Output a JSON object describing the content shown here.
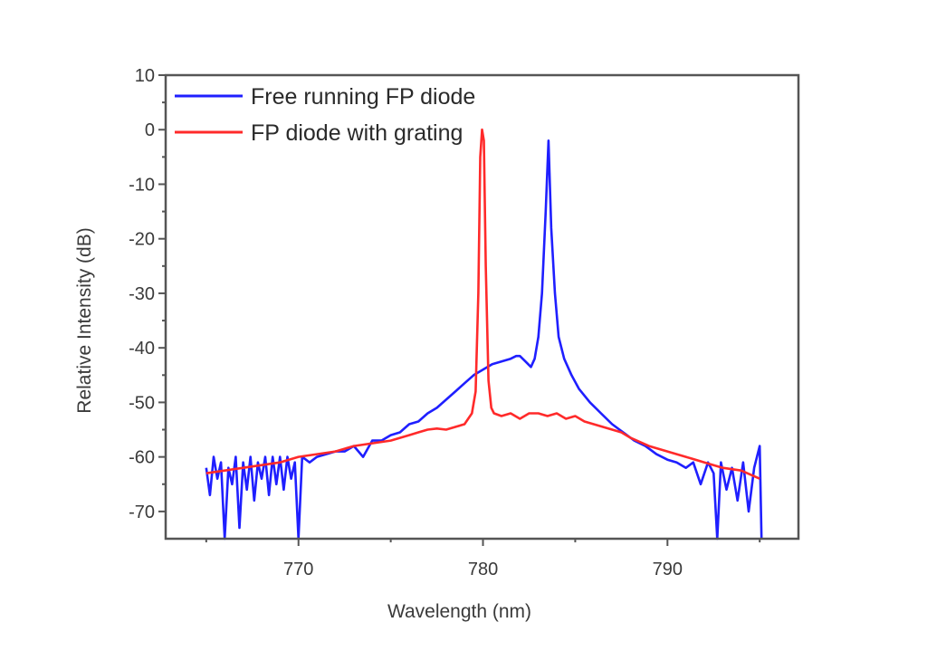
{
  "chart_data": {
    "type": "line",
    "title": "",
    "xlabel": "Wavelength (nm)",
    "ylabel": "Relative Intensity (dB)",
    "xlim": [
      762.8,
      797.1
    ],
    "ylim": [
      -75,
      10
    ],
    "x_ticks": [
      770,
      780,
      790
    ],
    "x_minor_ticks": [
      765,
      775,
      785,
      795
    ],
    "y_ticks": [
      10,
      0,
      -10,
      -20,
      -30,
      -40,
      -50,
      -60,
      -70
    ],
    "y_minor_ticks": [
      5,
      -5,
      -15,
      -25,
      -35,
      -45,
      -55,
      -65
    ],
    "grid": false,
    "legend_position": "upper-left",
    "series": [
      {
        "name": "Free running FP diode",
        "color": "#1f1fff",
        "x": [
          765.0,
          765.2,
          765.4,
          765.6,
          765.8,
          766.0,
          766.2,
          766.4,
          766.6,
          766.8,
          767.0,
          767.2,
          767.4,
          767.6,
          767.8,
          768.0,
          768.2,
          768.4,
          768.6,
          768.8,
          769.0,
          769.2,
          769.4,
          769.6,
          769.8,
          770.0,
          770.2,
          770.6,
          771.0,
          771.5,
          772.0,
          772.5,
          773.0,
          773.5,
          774.0,
          774.5,
          775.0,
          775.5,
          776.0,
          776.5,
          777.0,
          777.5,
          778.0,
          778.5,
          779.0,
          779.5,
          780.0,
          780.5,
          781.0,
          781.5,
          781.8,
          782.0,
          782.3,
          782.6,
          782.8,
          783.0,
          783.2,
          783.4,
          783.55,
          783.7,
          783.9,
          784.1,
          784.4,
          784.8,
          785.2,
          785.8,
          786.4,
          787.0,
          787.6,
          788.2,
          788.8,
          789.4,
          790.0,
          790.5,
          791.0,
          791.4,
          791.8,
          792.2,
          792.5,
          792.7,
          792.9,
          793.2,
          793.5,
          793.8,
          794.1,
          794.4,
          794.7,
          795.0,
          795.1
        ],
        "y": [
          -62,
          -67,
          -60,
          -64,
          -61,
          -75,
          -62,
          -65,
          -60,
          -73,
          -61,
          -66,
          -60,
          -68,
          -61,
          -64,
          -60,
          -67,
          -60,
          -65,
          -60,
          -66,
          -60,
          -64,
          -61,
          -75,
          -60,
          -61,
          -60,
          -59.5,
          -59,
          -59,
          -58,
          -60,
          -57,
          -57,
          -56,
          -55.5,
          -54,
          -53.5,
          -52,
          -51,
          -49.5,
          -48,
          -46.5,
          -45,
          -44,
          -43,
          -42.5,
          -42,
          -41.5,
          -41.5,
          -42.5,
          -43.5,
          -42,
          -38,
          -30,
          -15,
          -2,
          -18,
          -30,
          -38,
          -42,
          -45,
          -47.5,
          -50,
          -52,
          -54,
          -55.5,
          -57,
          -58,
          -59.5,
          -60.5,
          -61,
          -62,
          -61,
          -65,
          -61,
          -63,
          -75,
          -61,
          -66,
          -62,
          -68,
          -61,
          -70,
          -62,
          -58,
          -75
        ]
      },
      {
        "name": "FP diode with grating",
        "color": "#ff2a2a",
        "x": [
          765.0,
          766.0,
          767.0,
          768.0,
          769.0,
          770.0,
          771.0,
          772.0,
          773.0,
          774.0,
          775.0,
          775.5,
          776.0,
          776.5,
          777.0,
          777.5,
          778.0,
          778.5,
          779.0,
          779.4,
          779.6,
          779.75,
          779.85,
          779.95,
          780.05,
          780.15,
          780.3,
          780.45,
          780.6,
          781.0,
          781.5,
          782.0,
          782.5,
          783.0,
          783.5,
          784.0,
          784.5,
          785.0,
          785.5,
          786.0,
          786.5,
          787.0,
          787.5,
          788.0,
          789.0,
          790.0,
          791.0,
          792.0,
          793.0,
          794.0,
          795.0
        ],
        "y": [
          -63,
          -62.5,
          -62,
          -61.5,
          -61,
          -60,
          -59.5,
          -59,
          -58,
          -57.5,
          -57,
          -56.5,
          -56,
          -55.5,
          -55,
          -54.8,
          -55,
          -54.5,
          -54,
          -52,
          -48,
          -30,
          -5,
          0,
          -2,
          -25,
          -46,
          -51,
          -52,
          -52.5,
          -52,
          -53,
          -52,
          -52,
          -52.5,
          -52,
          -53,
          -52.5,
          -53.5,
          -54,
          -54.5,
          -55,
          -55.5,
          -56.5,
          -58,
          -59,
          -60,
          -61,
          -62,
          -62.5,
          -64
        ]
      }
    ]
  },
  "legend": {
    "items": [
      {
        "label": "Free running FP diode",
        "color": "#1f1fff"
      },
      {
        "label": "FP diode with grating",
        "color": "#ff2a2a"
      }
    ]
  },
  "axes": {
    "xlabel": "Wavelength (nm)",
    "ylabel": "Relative Intensity (dB)",
    "x_tick_labels": [
      "770",
      "780",
      "790"
    ],
    "y_tick_labels": [
      "10",
      "0",
      "-10",
      "-20",
      "-30",
      "-40",
      "-50",
      "-60",
      "-70"
    ]
  }
}
